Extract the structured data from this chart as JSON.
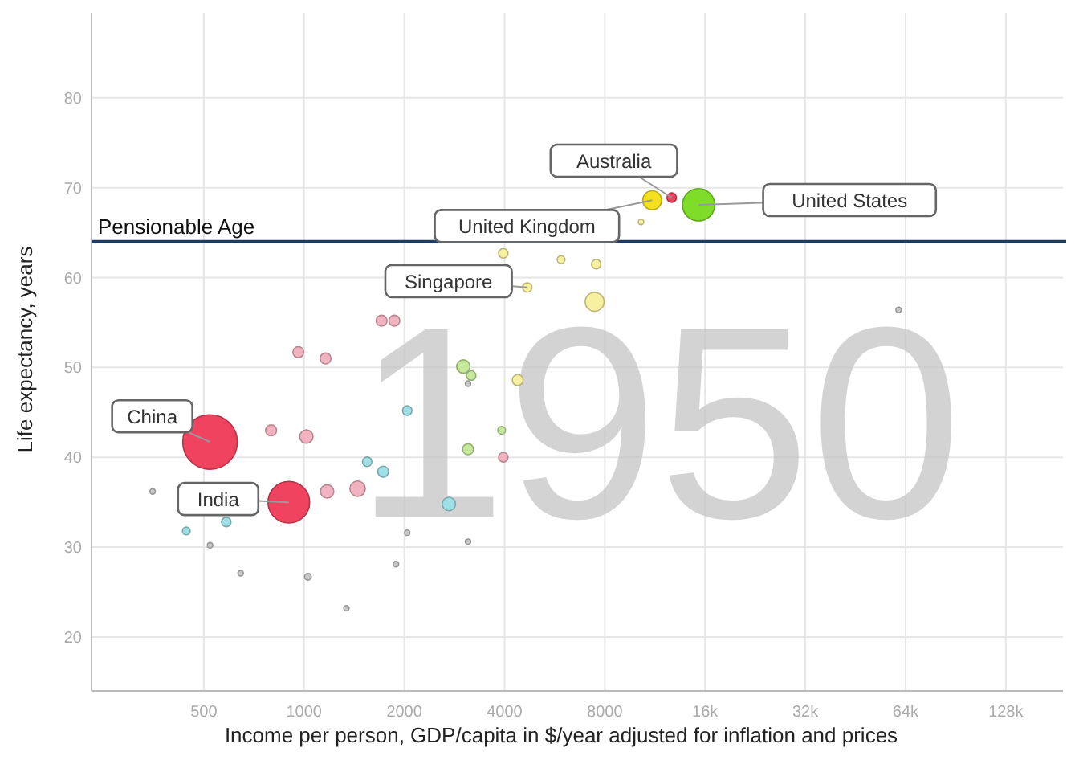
{
  "chart_data": {
    "type": "bubble",
    "xlabel": "Income per person, GDP/capita in $/year adjusted for inflation and prices",
    "ylabel": "Life expectancy, years",
    "log": "x",
    "grid": true,
    "marker": "circle",
    "xlim": [
      230,
      190000
    ],
    "xticks": [
      500,
      1000,
      2000,
      4000,
      8000,
      {
        "value": 16000,
        "label": "16k"
      },
      {
        "value": 32000,
        "label": "32k"
      },
      {
        "value": 64000,
        "label": "64k"
      },
      {
        "value": 128000,
        "label": "128k"
      }
    ],
    "ylim": [
      14,
      90
    ],
    "yticks": [
      20,
      30,
      40,
      50,
      60,
      70,
      80
    ],
    "ref_lines": [
      {
        "axis": "y",
        "value": 64,
        "label": "Pensionable Age",
        "color": "#1f3b63"
      }
    ],
    "series": [
      {
        "color": "#c8c8c8",
        "x": [
          522,
          645,
          1027,
          1340,
          1888,
          351,
          2041,
          3107,
          3107,
          61000
        ],
        "values": [
          30.2,
          27.1,
          26.7,
          23.2,
          28.1,
          36.2,
          31.6,
          30.6,
          48.2,
          56.4
        ],
        "sizes": [
          0.01,
          0.01,
          0.015,
          0.01,
          0.01,
          0.01,
          0.01,
          0.01,
          0.01,
          0.01
        ]
      },
      {
        "color": "#f2b3c0",
        "x": [
          1709,
          1867,
          961,
          1160,
          796,
          1016,
          1173,
          1448,
          3965
        ],
        "values": [
          55.2,
          55.2,
          51.7,
          51.0,
          43.0,
          42.3,
          36.2,
          36.5,
          40.0
        ],
        "sizes": [
          0.04,
          0.04,
          0.04,
          0.04,
          0.04,
          0.06,
          0.06,
          0.08,
          0.03
        ]
      },
      {
        "color": "#9fe0e6",
        "x": [
          1547,
          1728,
          2041,
          2721,
          584,
          443
        ],
        "values": [
          39.5,
          38.4,
          45.2,
          34.8,
          32.8,
          31.8
        ],
        "sizes": [
          0.03,
          0.04,
          0.03,
          0.06,
          0.03,
          0.02
        ]
      },
      {
        "color": "#f7f0a0",
        "x": [
          3965,
          4680,
          5912,
          7536,
          7456,
          4380,
          10275
        ],
        "values": [
          62.7,
          58.9,
          62.0,
          61.5,
          57.3,
          48.6,
          66.2
        ],
        "sizes": [
          0.03,
          0.03,
          0.02,
          0.03,
          0.12,
          0.04,
          0.01
        ]
      },
      {
        "color": "#c5e89a",
        "x": [
          3007,
          3176,
          3107,
          3920
        ],
        "values": [
          50.1,
          49.1,
          40.9,
          43.0
        ],
        "sizes": [
          0.06,
          0.03,
          0.04,
          0.02
        ]
      },
      {
        "color": "#f0435f",
        "x": [
          522,
          900,
          12700
        ],
        "values": [
          41.7,
          35.0,
          68.9
        ],
        "sizes": [
          1,
          0.58,
          0.03
        ]
      },
      {
        "color": "#f5e020",
        "x": [
          11100
        ],
        "values": [
          68.6
        ],
        "sizes": [
          0.12
        ]
      },
      {
        "color": "#7fdd2a",
        "x": [
          15300
        ],
        "values": [
          68.1
        ],
        "sizes": [
          0.35
        ]
      }
    ],
    "annotations": [
      "1950",
      {
        "text": "Australia",
        "x": 12700,
        "y": 68.9
      },
      {
        "text": "United Kingdom",
        "x": 11100,
        "y": 68.6
      },
      {
        "text": "United States",
        "x": 15300,
        "y": 68.1
      },
      {
        "text": "Singapore",
        "x": 4680,
        "y": 58.9
      },
      {
        "text": "China",
        "x": 522,
        "y": 41.7
      },
      {
        "text": "India",
        "x": 900,
        "y": 35.0
      }
    ]
  }
}
